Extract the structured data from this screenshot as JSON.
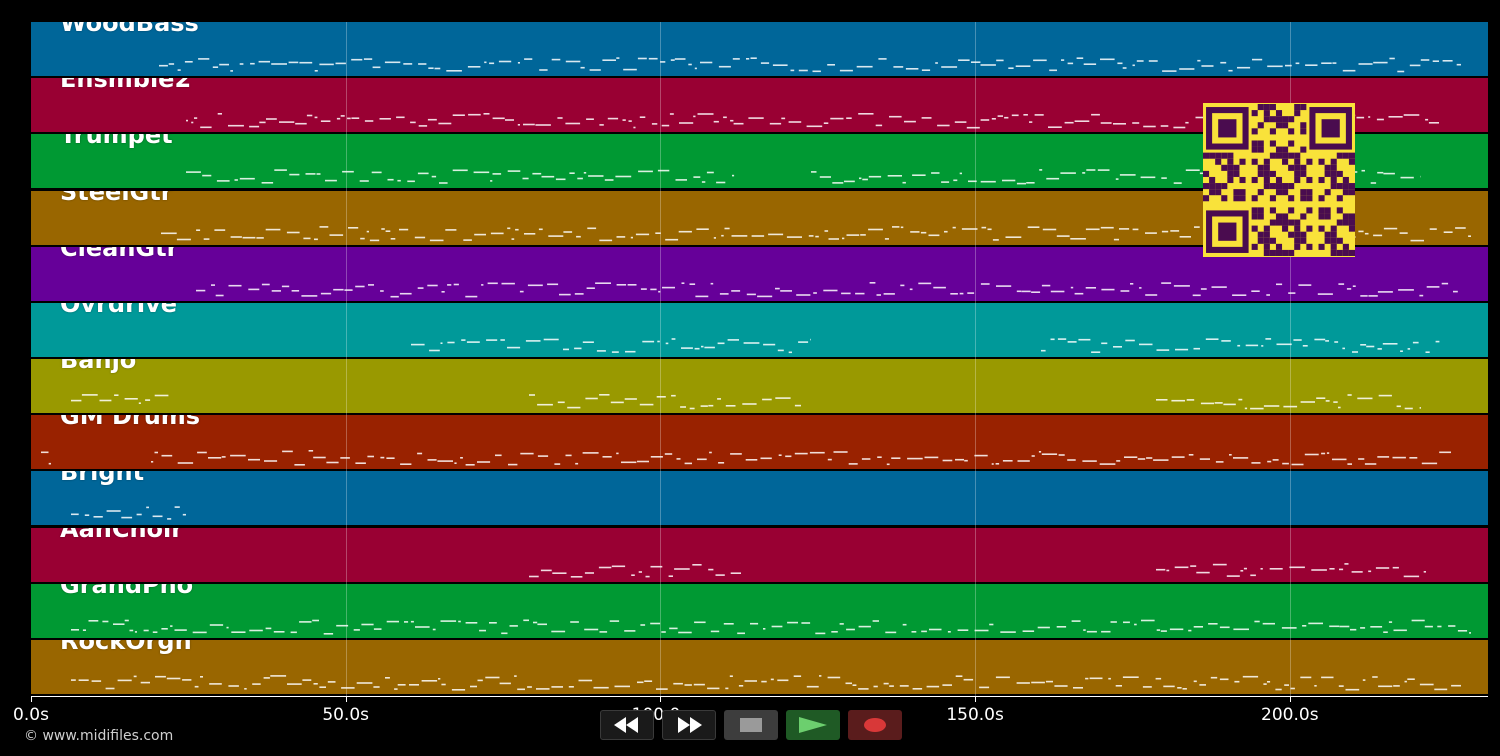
{
  "tracks": [
    {
      "label": "WoodBass",
      "color": "#006699"
    },
    {
      "label": "Ensmble2",
      "color": "#990033"
    },
    {
      "label": "Trumpet",
      "color": "#009933"
    },
    {
      "label": "SteelGtr",
      "color": "#996600"
    },
    {
      "label": "CleanGtr",
      "color": "#660099"
    },
    {
      "label": "Ovrdrive",
      "color": "#009999"
    },
    {
      "label": "Banjo",
      "color": "#999900"
    },
    {
      "label": "GM Drums",
      "color": "#992200"
    },
    {
      "label": "Bright",
      "color": "#006699"
    },
    {
      "label": "AahChoir",
      "color": "#990033"
    },
    {
      "label": "GrandPno",
      "color": "#009933"
    },
    {
      "label": "RockOrgn",
      "color": "#996600"
    }
  ],
  "timeline": {
    "max_seconds": 231.6,
    "ticks": [
      {
        "value": 0,
        "label": "0.0s"
      },
      {
        "value": 50,
        "label": "50.0s"
      },
      {
        "value": 100,
        "label": "100.0s"
      },
      {
        "value": 150,
        "label": "150.0s"
      },
      {
        "value": 200,
        "label": "200.0s"
      }
    ]
  },
  "copyright": "© www.midifiles.com",
  "transport": {
    "rewind": "rewind-icon",
    "fast_forward": "fast-forward-icon",
    "stop": "stop-icon",
    "play": "play-icon",
    "record": "record-icon",
    "colors": {
      "play_icon": "#6ccf6e",
      "record_icon": "#d83838",
      "stop_icon": "#9a9a9a"
    }
  },
  "qr_code": {
    "icon": "qr-code-icon",
    "fg": "#4a0c4f",
    "bg": "#f9e23a"
  }
}
